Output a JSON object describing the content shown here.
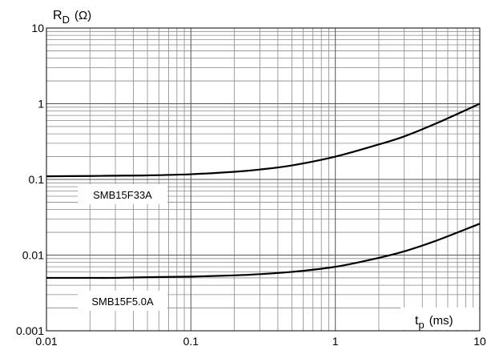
{
  "chart_data": {
    "type": "line",
    "scale": {
      "x": "log",
      "y": "log"
    },
    "xlim": [
      0.01,
      10
    ],
    "ylim": [
      0.001,
      10
    ],
    "grid": true,
    "x_tick_labels": [
      "0.01",
      "0.1",
      "1",
      "10"
    ],
    "y_tick_labels": [
      "0.001",
      "0.01",
      "0.1",
      "1",
      "10"
    ],
    "y_axis_label": {
      "main": "R",
      "sub": "D",
      "unit": "(Ω)"
    },
    "x_axis_label": {
      "main": "t",
      "sub": "p",
      "unit": "(ms)"
    },
    "series": [
      {
        "name": "SMB15F33A",
        "x": [
          0.01,
          0.02,
          0.03,
          0.05,
          0.1,
          0.2,
          0.3,
          0.5,
          1,
          2,
          3,
          5,
          10
        ],
        "y": [
          0.11,
          0.111,
          0.112,
          0.113,
          0.117,
          0.126,
          0.135,
          0.153,
          0.2,
          0.29,
          0.37,
          0.55,
          1.0
        ]
      },
      {
        "name": "SMB15F5.0A",
        "x": [
          0.01,
          0.02,
          0.03,
          0.05,
          0.1,
          0.2,
          0.3,
          0.5,
          1,
          2,
          3,
          5,
          10
        ],
        "y": [
          0.005,
          0.005,
          0.005,
          0.0051,
          0.0052,
          0.0054,
          0.0056,
          0.006,
          0.007,
          0.0092,
          0.0112,
          0.0155,
          0.026
        ]
      }
    ],
    "series_labels": [
      "SMB15F33A",
      "SMB15F5.0A"
    ]
  }
}
